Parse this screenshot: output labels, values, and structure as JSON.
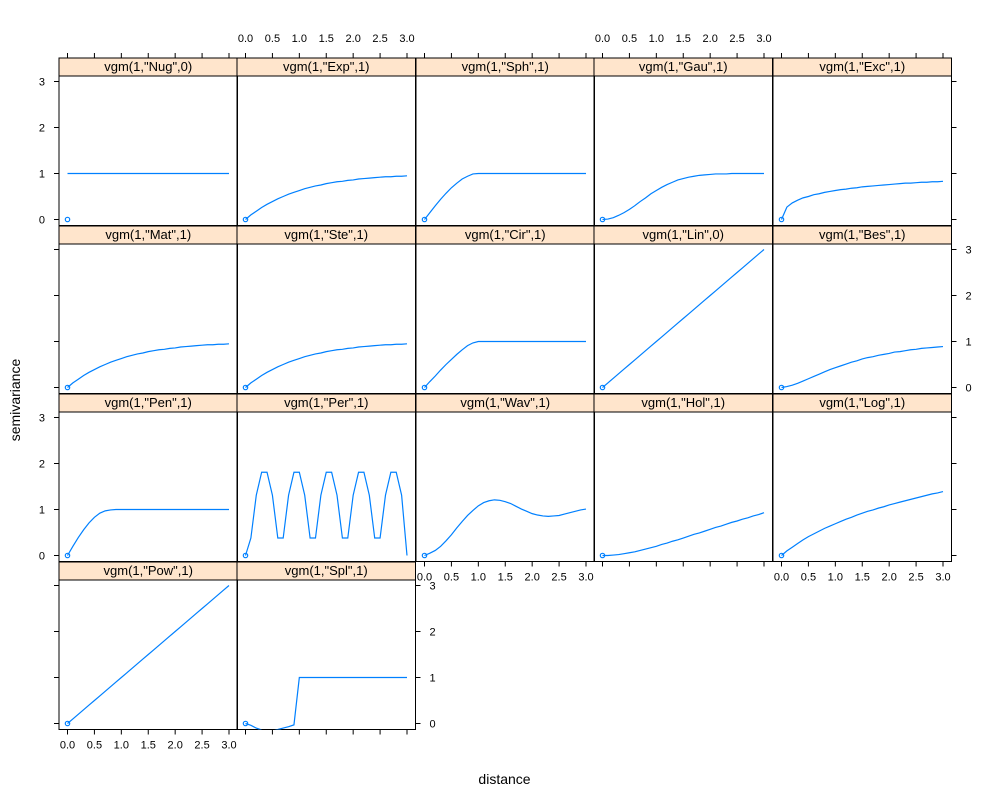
{
  "chart_data": {
    "type": "line",
    "layout": {
      "columns": 5,
      "rows": 4,
      "order": "top-left, left-to-right"
    },
    "xlabel": "distance",
    "ylabel": "semivariance",
    "xlim": [
      0,
      3
    ],
    "ylim": [
      0,
      3
    ],
    "x_ticks": [
      "0.0",
      "0.5",
      "1.0",
      "1.5",
      "2.0",
      "2.5",
      "3.0"
    ],
    "y_ticks": [
      "0",
      "1",
      "2",
      "3"
    ],
    "line_color": "#0080ff",
    "strip_color": "#ffe5cc",
    "x": [
      0.0,
      0.1,
      0.2,
      0.3,
      0.4,
      0.5,
      0.6,
      0.7,
      0.8,
      0.9,
      1.0,
      1.1,
      1.2,
      1.3,
      1.4,
      1.5,
      1.6,
      1.7,
      1.8,
      1.9,
      2.0,
      2.1,
      2.2,
      2.3,
      2.4,
      2.5,
      2.6,
      2.7,
      2.8,
      2.9,
      3.0
    ],
    "panels": [
      {
        "title": "vgm(1,\"Nug\",0)",
        "point": [
          0,
          0
        ],
        "values": [
          1,
          1,
          1,
          1,
          1,
          1,
          1,
          1,
          1,
          1,
          1,
          1,
          1,
          1,
          1,
          1,
          1,
          1,
          1,
          1,
          1,
          1,
          1,
          1,
          1,
          1,
          1,
          1,
          1,
          1,
          1
        ]
      },
      {
        "title": "vgm(1,\"Exp\",1)",
        "point": [
          0,
          0
        ],
        "values": [
          0,
          0.1,
          0.18,
          0.26,
          0.33,
          0.39,
          0.45,
          0.5,
          0.55,
          0.59,
          0.63,
          0.67,
          0.7,
          0.73,
          0.75,
          0.78,
          0.8,
          0.82,
          0.83,
          0.85,
          0.86,
          0.88,
          0.89,
          0.9,
          0.91,
          0.92,
          0.93,
          0.93,
          0.94,
          0.94,
          0.95
        ]
      },
      {
        "title": "vgm(1,\"Sph\",1)",
        "point": [
          0,
          0
        ],
        "values": [
          0,
          0.15,
          0.3,
          0.44,
          0.57,
          0.69,
          0.79,
          0.88,
          0.94,
          0.99,
          1,
          1,
          1,
          1,
          1,
          1,
          1,
          1,
          1,
          1,
          1,
          1,
          1,
          1,
          1,
          1,
          1,
          1,
          1,
          1,
          1
        ]
      },
      {
        "title": "vgm(1,\"Gau\",1)",
        "point": [
          0,
          0
        ],
        "values": [
          0,
          0.01,
          0.04,
          0.09,
          0.15,
          0.22,
          0.3,
          0.39,
          0.47,
          0.56,
          0.63,
          0.7,
          0.76,
          0.81,
          0.86,
          0.89,
          0.92,
          0.94,
          0.96,
          0.97,
          0.98,
          0.99,
          0.99,
          0.99,
          1,
          1,
          1,
          1,
          1,
          1,
          1
        ]
      },
      {
        "title": "vgm(1,\"Exc\",1)",
        "point": [
          0,
          0
        ],
        "values": [
          0,
          0.27,
          0.36,
          0.42,
          0.47,
          0.5,
          0.54,
          0.56,
          0.59,
          0.61,
          0.63,
          0.65,
          0.66,
          0.68,
          0.69,
          0.71,
          0.72,
          0.73,
          0.74,
          0.75,
          0.76,
          0.77,
          0.78,
          0.79,
          0.79,
          0.8,
          0.81,
          0.81,
          0.82,
          0.82,
          0.83
        ]
      },
      {
        "title": "vgm(1,\"Mat\",1)",
        "point": [
          0,
          0
        ],
        "values": [
          0,
          0.1,
          0.18,
          0.26,
          0.33,
          0.39,
          0.45,
          0.5,
          0.55,
          0.59,
          0.63,
          0.67,
          0.7,
          0.73,
          0.75,
          0.78,
          0.8,
          0.82,
          0.83,
          0.85,
          0.86,
          0.88,
          0.89,
          0.9,
          0.91,
          0.92,
          0.93,
          0.93,
          0.94,
          0.94,
          0.95
        ]
      },
      {
        "title": "vgm(1,\"Ste\",1)",
        "point": [
          0,
          0
        ],
        "values": [
          0,
          0.1,
          0.18,
          0.26,
          0.33,
          0.39,
          0.45,
          0.5,
          0.55,
          0.59,
          0.63,
          0.67,
          0.7,
          0.73,
          0.75,
          0.78,
          0.8,
          0.82,
          0.83,
          0.85,
          0.86,
          0.88,
          0.89,
          0.9,
          0.91,
          0.92,
          0.93,
          0.93,
          0.94,
          0.94,
          0.95
        ]
      },
      {
        "title": "vgm(1,\"Cir\",1)",
        "point": [
          0,
          0
        ],
        "values": [
          0,
          0.13,
          0.25,
          0.38,
          0.5,
          0.61,
          0.72,
          0.82,
          0.91,
          0.97,
          1,
          1,
          1,
          1,
          1,
          1,
          1,
          1,
          1,
          1,
          1,
          1,
          1,
          1,
          1,
          1,
          1,
          1,
          1,
          1,
          1
        ]
      },
      {
        "title": "vgm(1,\"Lin\",0)",
        "point": [
          0,
          0
        ],
        "values": [
          0,
          0.1,
          0.2,
          0.3,
          0.4,
          0.5,
          0.6,
          0.7,
          0.8,
          0.9,
          1,
          1.1,
          1.2,
          1.3,
          1.4,
          1.5,
          1.6,
          1.7,
          1.8,
          1.9,
          2,
          2.1,
          2.2,
          2.3,
          2.4,
          2.5,
          2.6,
          2.7,
          2.8,
          2.9,
          3
        ]
      },
      {
        "title": "vgm(1,\"Bes\",1)",
        "point": [
          0,
          0
        ],
        "values": [
          0,
          0.02,
          0.05,
          0.09,
          0.14,
          0.19,
          0.24,
          0.29,
          0.34,
          0.39,
          0.43,
          0.47,
          0.51,
          0.55,
          0.58,
          0.62,
          0.65,
          0.67,
          0.7,
          0.72,
          0.74,
          0.77,
          0.78,
          0.8,
          0.82,
          0.83,
          0.85,
          0.86,
          0.87,
          0.88,
          0.89
        ]
      },
      {
        "title": "vgm(1,\"Pen\",1)",
        "point": [
          0,
          0
        ],
        "values": [
          0,
          0.2,
          0.39,
          0.56,
          0.71,
          0.83,
          0.92,
          0.97,
          0.99,
          1,
          1,
          1,
          1,
          1,
          1,
          1,
          1,
          1,
          1,
          1,
          1,
          1,
          1,
          1,
          1,
          1,
          1,
          1,
          1,
          1,
          1
        ]
      },
      {
        "title": "vgm(1,\"Per\",1)",
        "point": [
          0,
          0
        ],
        "values": [
          0,
          0.38,
          1.31,
          1.81,
          1.81,
          1.31,
          0.38,
          0.38,
          1.31,
          1.81,
          1.81,
          1.31,
          0.38,
          0.38,
          1.31,
          1.81,
          1.81,
          1.31,
          0.38,
          0.38,
          1.31,
          1.81,
          1.81,
          1.31,
          0.38,
          0.38,
          1.31,
          1.81,
          1.81,
          1.31,
          0
        ]
      },
      {
        "title": "vgm(1,\"Wav\",1)",
        "point": [
          0,
          0
        ],
        "values": [
          0,
          0.05,
          0.11,
          0.2,
          0.32,
          0.45,
          0.6,
          0.74,
          0.87,
          0.98,
          1.08,
          1.15,
          1.19,
          1.21,
          1.2,
          1.17,
          1.13,
          1.07,
          1.01,
          0.96,
          0.91,
          0.88,
          0.86,
          0.85,
          0.86,
          0.87,
          0.9,
          0.93,
          0.96,
          0.99,
          1.01
        ]
      },
      {
        "title": "vgm(1,\"Hol\",1)",
        "point": [
          0,
          0
        ],
        "values": [
          0,
          0,
          0.01,
          0.02,
          0.04,
          0.06,
          0.08,
          0.11,
          0.14,
          0.17,
          0.2,
          0.24,
          0.27,
          0.31,
          0.34,
          0.38,
          0.42,
          0.46,
          0.49,
          0.53,
          0.57,
          0.61,
          0.64,
          0.68,
          0.72,
          0.75,
          0.79,
          0.82,
          0.86,
          0.89,
          0.93
        ]
      },
      {
        "title": "vgm(1,\"Log\",1)",
        "point": [
          0,
          0
        ],
        "values": [
          0,
          0.1,
          0.18,
          0.26,
          0.34,
          0.41,
          0.47,
          0.53,
          0.59,
          0.64,
          0.69,
          0.74,
          0.79,
          0.83,
          0.88,
          0.92,
          0.96,
          0.99,
          1.03,
          1.06,
          1.1,
          1.13,
          1.16,
          1.19,
          1.22,
          1.25,
          1.28,
          1.31,
          1.34,
          1.36,
          1.39
        ]
      },
      {
        "title": "vgm(1,\"Pow\",1)",
        "point": [
          0,
          0
        ],
        "values": [
          0,
          0.1,
          0.2,
          0.3,
          0.4,
          0.5,
          0.6,
          0.7,
          0.8,
          0.9,
          1,
          1.1,
          1.2,
          1.3,
          1.4,
          1.5,
          1.6,
          1.7,
          1.8,
          1.9,
          2,
          2.1,
          2.2,
          2.3,
          2.4,
          2.5,
          2.6,
          2.7,
          2.8,
          2.9,
          3
        ]
      },
      {
        "title": "vgm(1,\"Spl\",1)",
        "point": [
          0,
          0
        ],
        "values": [
          0,
          -0.04,
          -0.1,
          -0.14,
          -0.15,
          -0.15,
          -0.13,
          -0.1,
          -0.07,
          -0.03,
          1,
          1,
          1,
          1,
          1,
          1,
          1,
          1,
          1,
          1,
          1,
          1,
          1,
          1,
          1,
          1,
          1,
          1,
          1,
          1,
          1
        ]
      }
    ]
  }
}
